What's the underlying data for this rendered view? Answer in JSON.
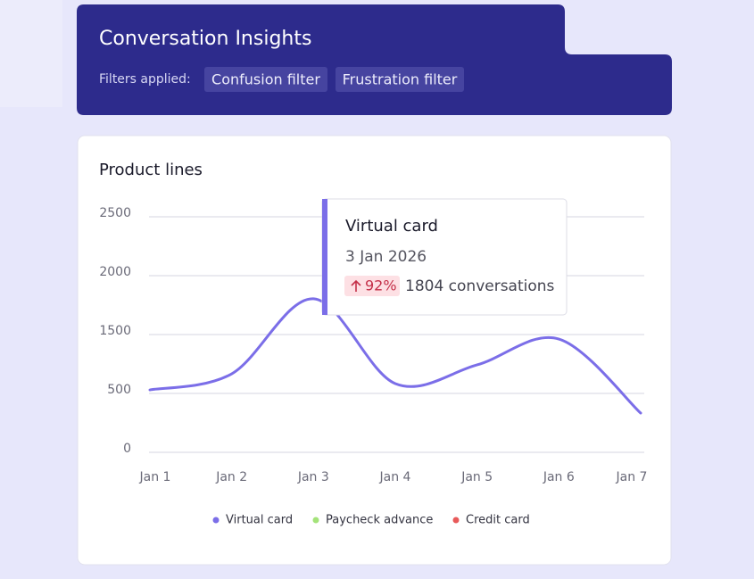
{
  "header": {
    "title": "Conversation Insights",
    "filters_label": "Filters applied:",
    "filters": [
      "Confusion filter",
      "Frustration filter"
    ]
  },
  "chart_data": {
    "type": "line",
    "title": "Product lines",
    "categories": [
      "Jan 1",
      "Jan 2",
      "Jan 3",
      "Jan 4",
      "Jan 5",
      "Jan 6",
      "Jan 7"
    ],
    "series": [
      {
        "name": "Virtual card",
        "color": "#7b6ee8",
        "values": [
          560,
          833,
          1804,
          667,
          985,
          1424,
          333
        ]
      },
      {
        "name": "Paycheck advance",
        "color": "#a4e37a",
        "values": [
          null,
          null,
          null,
          null,
          null,
          null,
          null
        ]
      },
      {
        "name": "Credit card",
        "color": "#e85a5a",
        "values": [
          null,
          null,
          null,
          null,
          null,
          null,
          null
        ]
      }
    ],
    "ylim": [
      0,
      2500
    ],
    "yticks": [
      0,
      500,
      1500,
      2000,
      2500
    ],
    "grid": true,
    "legend": "bottom",
    "tooltip": {
      "title": "Virtual card",
      "date": "3 Jan 2026",
      "change": "92%",
      "detail": "1804 conversations"
    }
  }
}
